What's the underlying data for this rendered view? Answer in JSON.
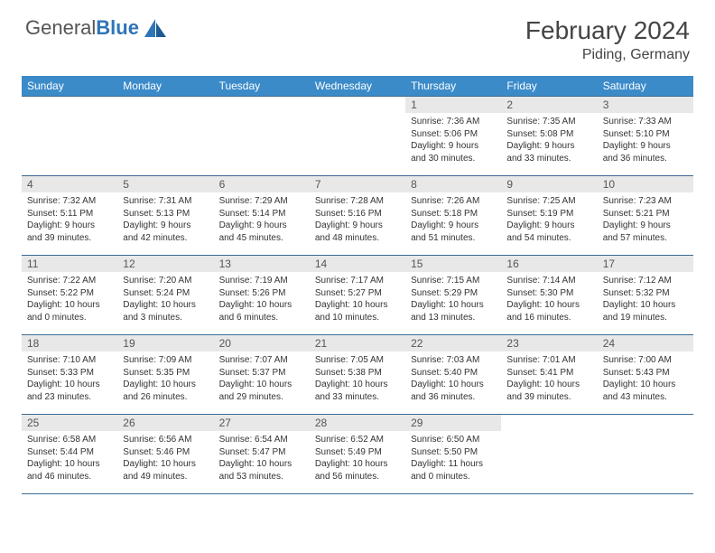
{
  "logo": {
    "text_general": "General",
    "text_blue": "Blue"
  },
  "header": {
    "month_title": "February 2024",
    "location": "Piding, Germany"
  },
  "colors": {
    "header_bg": "#3b8bc9",
    "header_text": "#ffffff",
    "daynum_bg": "#e8e8e8",
    "daynum_text": "#555555",
    "body_text": "#333333",
    "rule": "#3b6a94",
    "logo_gray": "#555555",
    "logo_blue": "#2e75b6"
  },
  "day_names": [
    "Sunday",
    "Monday",
    "Tuesday",
    "Wednesday",
    "Thursday",
    "Friday",
    "Saturday"
  ],
  "weeks": [
    [
      {
        "n": "",
        "sr": "",
        "ss": "",
        "dl": ""
      },
      {
        "n": "",
        "sr": "",
        "ss": "",
        "dl": ""
      },
      {
        "n": "",
        "sr": "",
        "ss": "",
        "dl": ""
      },
      {
        "n": "",
        "sr": "",
        "ss": "",
        "dl": ""
      },
      {
        "n": "1",
        "sr": "7:36 AM",
        "ss": "5:06 PM",
        "dl": "9 hours and 30 minutes."
      },
      {
        "n": "2",
        "sr": "7:35 AM",
        "ss": "5:08 PM",
        "dl": "9 hours and 33 minutes."
      },
      {
        "n": "3",
        "sr": "7:33 AM",
        "ss": "5:10 PM",
        "dl": "9 hours and 36 minutes."
      }
    ],
    [
      {
        "n": "4",
        "sr": "7:32 AM",
        "ss": "5:11 PM",
        "dl": "9 hours and 39 minutes."
      },
      {
        "n": "5",
        "sr": "7:31 AM",
        "ss": "5:13 PM",
        "dl": "9 hours and 42 minutes."
      },
      {
        "n": "6",
        "sr": "7:29 AM",
        "ss": "5:14 PM",
        "dl": "9 hours and 45 minutes."
      },
      {
        "n": "7",
        "sr": "7:28 AM",
        "ss": "5:16 PM",
        "dl": "9 hours and 48 minutes."
      },
      {
        "n": "8",
        "sr": "7:26 AM",
        "ss": "5:18 PM",
        "dl": "9 hours and 51 minutes."
      },
      {
        "n": "9",
        "sr": "7:25 AM",
        "ss": "5:19 PM",
        "dl": "9 hours and 54 minutes."
      },
      {
        "n": "10",
        "sr": "7:23 AM",
        "ss": "5:21 PM",
        "dl": "9 hours and 57 minutes."
      }
    ],
    [
      {
        "n": "11",
        "sr": "7:22 AM",
        "ss": "5:22 PM",
        "dl": "10 hours and 0 minutes."
      },
      {
        "n": "12",
        "sr": "7:20 AM",
        "ss": "5:24 PM",
        "dl": "10 hours and 3 minutes."
      },
      {
        "n": "13",
        "sr": "7:19 AM",
        "ss": "5:26 PM",
        "dl": "10 hours and 6 minutes."
      },
      {
        "n": "14",
        "sr": "7:17 AM",
        "ss": "5:27 PM",
        "dl": "10 hours and 10 minutes."
      },
      {
        "n": "15",
        "sr": "7:15 AM",
        "ss": "5:29 PM",
        "dl": "10 hours and 13 minutes."
      },
      {
        "n": "16",
        "sr": "7:14 AM",
        "ss": "5:30 PM",
        "dl": "10 hours and 16 minutes."
      },
      {
        "n": "17",
        "sr": "7:12 AM",
        "ss": "5:32 PM",
        "dl": "10 hours and 19 minutes."
      }
    ],
    [
      {
        "n": "18",
        "sr": "7:10 AM",
        "ss": "5:33 PM",
        "dl": "10 hours and 23 minutes."
      },
      {
        "n": "19",
        "sr": "7:09 AM",
        "ss": "5:35 PM",
        "dl": "10 hours and 26 minutes."
      },
      {
        "n": "20",
        "sr": "7:07 AM",
        "ss": "5:37 PM",
        "dl": "10 hours and 29 minutes."
      },
      {
        "n": "21",
        "sr": "7:05 AM",
        "ss": "5:38 PM",
        "dl": "10 hours and 33 minutes."
      },
      {
        "n": "22",
        "sr": "7:03 AM",
        "ss": "5:40 PM",
        "dl": "10 hours and 36 minutes."
      },
      {
        "n": "23",
        "sr": "7:01 AM",
        "ss": "5:41 PM",
        "dl": "10 hours and 39 minutes."
      },
      {
        "n": "24",
        "sr": "7:00 AM",
        "ss": "5:43 PM",
        "dl": "10 hours and 43 minutes."
      }
    ],
    [
      {
        "n": "25",
        "sr": "6:58 AM",
        "ss": "5:44 PM",
        "dl": "10 hours and 46 minutes."
      },
      {
        "n": "26",
        "sr": "6:56 AM",
        "ss": "5:46 PM",
        "dl": "10 hours and 49 minutes."
      },
      {
        "n": "27",
        "sr": "6:54 AM",
        "ss": "5:47 PM",
        "dl": "10 hours and 53 minutes."
      },
      {
        "n": "28",
        "sr": "6:52 AM",
        "ss": "5:49 PM",
        "dl": "10 hours and 56 minutes."
      },
      {
        "n": "29",
        "sr": "6:50 AM",
        "ss": "5:50 PM",
        "dl": "11 hours and 0 minutes."
      },
      {
        "n": "",
        "sr": "",
        "ss": "",
        "dl": ""
      },
      {
        "n": "",
        "sr": "",
        "ss": "",
        "dl": ""
      }
    ]
  ],
  "labels": {
    "sunrise": "Sunrise: ",
    "sunset": "Sunset: ",
    "daylight": "Daylight: "
  }
}
